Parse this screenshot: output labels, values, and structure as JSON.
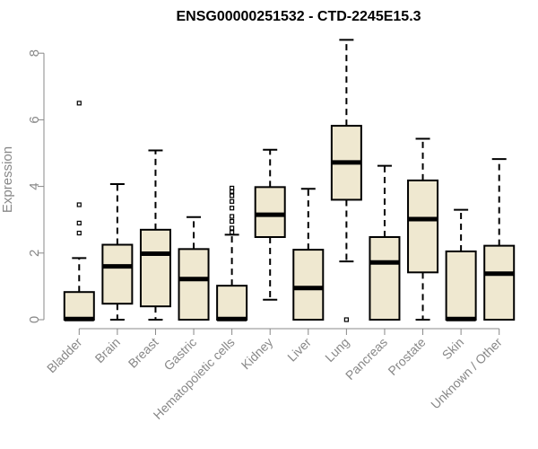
{
  "chart_data": {
    "type": "box",
    "title": "ENSG00000251532 - CTD-2245E15.3",
    "ylabel": "Expression",
    "xlabel": "",
    "ylim": [
      0,
      8.4
    ],
    "yticks": [
      0,
      2,
      4,
      6,
      8
    ],
    "grid": false,
    "box_color": "#efe8d0",
    "categories": [
      "Bladder",
      "Brain",
      "Breast",
      "Gastric",
      "Hematopoietic cells",
      "Kidney",
      "Liver",
      "Lung",
      "Pancreas",
      "Prostate",
      "Skin",
      "Unknown / Other"
    ],
    "boxes": [
      {
        "min": 0,
        "q1": 0,
        "median": 0.02,
        "q3": 0.83,
        "max": 1.85,
        "outliers": [
          2.6,
          2.9,
          3.45,
          6.5
        ]
      },
      {
        "min": 0,
        "q1": 0.48,
        "median": 1.6,
        "q3": 2.25,
        "max": 4.07,
        "outliers": []
      },
      {
        "min": 0,
        "q1": 0.4,
        "median": 1.98,
        "q3": 2.7,
        "max": 5.08,
        "outliers": []
      },
      {
        "min": 0,
        "q1": 0,
        "median": 1.22,
        "q3": 2.12,
        "max": 3.08,
        "outliers": []
      },
      {
        "min": 0,
        "q1": 0,
        "median": 0.02,
        "q3": 1.02,
        "max": 2.55,
        "outliers": [
          2.62,
          2.75,
          2.95,
          3.1,
          3.35,
          3.55,
          3.72,
          3.85,
          3.95
        ]
      },
      {
        "min": 0.6,
        "q1": 2.48,
        "median": 3.15,
        "q3": 3.98,
        "max": 5.1,
        "outliers": []
      },
      {
        "min": 0,
        "q1": 0,
        "median": 0.95,
        "q3": 2.1,
        "max": 3.93,
        "outliers": []
      },
      {
        "min": 1.75,
        "q1": 3.6,
        "median": 4.72,
        "q3": 5.82,
        "max": 8.4,
        "outliers": [
          0
        ]
      },
      {
        "min": 0,
        "q1": 0,
        "median": 1.72,
        "q3": 2.48,
        "max": 4.62,
        "outliers": []
      },
      {
        "min": 0,
        "q1": 1.42,
        "median": 3.02,
        "q3": 4.18,
        "max": 5.43,
        "outliers": []
      },
      {
        "min": 0,
        "q1": 0,
        "median": 0.02,
        "q3": 2.05,
        "max": 3.3,
        "outliers": []
      },
      {
        "min": 0,
        "q1": 0,
        "median": 1.38,
        "q3": 2.22,
        "max": 4.82,
        "outliers": []
      }
    ]
  }
}
